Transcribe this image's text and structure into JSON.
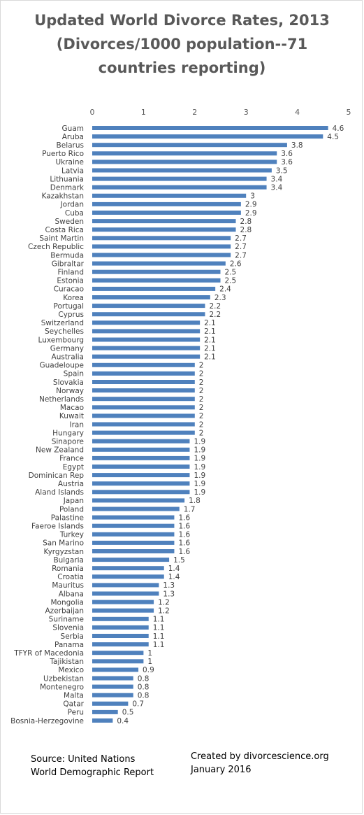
{
  "chart_data": {
    "type": "bar",
    "orientation": "horizontal",
    "title_lines": [
      "Updated World Divorce Rates, 2013",
      "(Divorces/1000 population--71",
      "countries reporting)"
    ],
    "xlim": [
      0,
      5
    ],
    "x_ticks": [
      "0",
      "1",
      "2",
      "3",
      "4",
      "5"
    ],
    "grid": false,
    "legend": "none",
    "bar_color": "#4f81bd",
    "categories": [
      "Guam",
      "Aruba",
      "Belarus",
      "Puerto Rico",
      "Ukraine",
      "Latvia",
      "Lithuania",
      "Denmark",
      "Kazakhstan",
      "Jordan",
      "Cuba",
      "Sweden",
      "Costa Rica",
      "Saint Martin",
      "Czech Republic",
      "Bermuda",
      "Gibraltar",
      "Finland",
      "Estonia",
      "Curacao",
      "Korea",
      "Portugal",
      "Cyprus",
      "Switzerland",
      "Seychelles",
      "Luxembourg",
      "Germany",
      "Australia",
      "Guadeloupe",
      "Spain",
      "Slovakia",
      "Norway",
      "Netherlands",
      "Macao",
      "Kuwait",
      "Iran",
      "Hungary",
      "Sinapore",
      "New Zealand",
      "France",
      "Egypt",
      "Dominican Rep",
      "Austria",
      "Aland Islands",
      "Japan",
      "Poland",
      "Palastine",
      "Faeroe Islands",
      "Turkey",
      "San Marino",
      "Kyrgyzstan",
      "Bulgaria",
      "Romania",
      "Croatia",
      "Mauritus",
      "Albana",
      "Mongolia",
      "Azerbaijan",
      "Suriname",
      "Slovenia",
      "Serbia",
      "Panama",
      "TFYR of Macedonia",
      "Tajikistan",
      "Mexico",
      "Uzbekistan",
      "Montenegro",
      "Malta",
      "Qatar",
      "Peru",
      "Bosnia-Herzegovine"
    ],
    "values": [
      4.6,
      4.5,
      3.8,
      3.6,
      3.6,
      3.5,
      3.4,
      3.4,
      3,
      2.9,
      2.9,
      2.8,
      2.8,
      2.7,
      2.7,
      2.7,
      2.6,
      2.5,
      2.5,
      2.4,
      2.3,
      2.2,
      2.2,
      2.1,
      2.1,
      2.1,
      2.1,
      2.1,
      2,
      2,
      2,
      2,
      2,
      2,
      2,
      2,
      2,
      1.9,
      1.9,
      1.9,
      1.9,
      1.9,
      1.9,
      1.9,
      1.8,
      1.7,
      1.6,
      1.6,
      1.6,
      1.6,
      1.6,
      1.5,
      1.4,
      1.4,
      1.3,
      1.3,
      1.2,
      1.2,
      1.1,
      1.1,
      1.1,
      1.1,
      1,
      1,
      0.9,
      0.8,
      0.8,
      0.8,
      0.7,
      0.5,
      0.4
    ]
  },
  "footer": {
    "source_lines": [
      "Source: United Nations",
      "World Demographic Report"
    ],
    "credit_lines": [
      "Created by divorcescience.org",
      "January 2016"
    ]
  }
}
